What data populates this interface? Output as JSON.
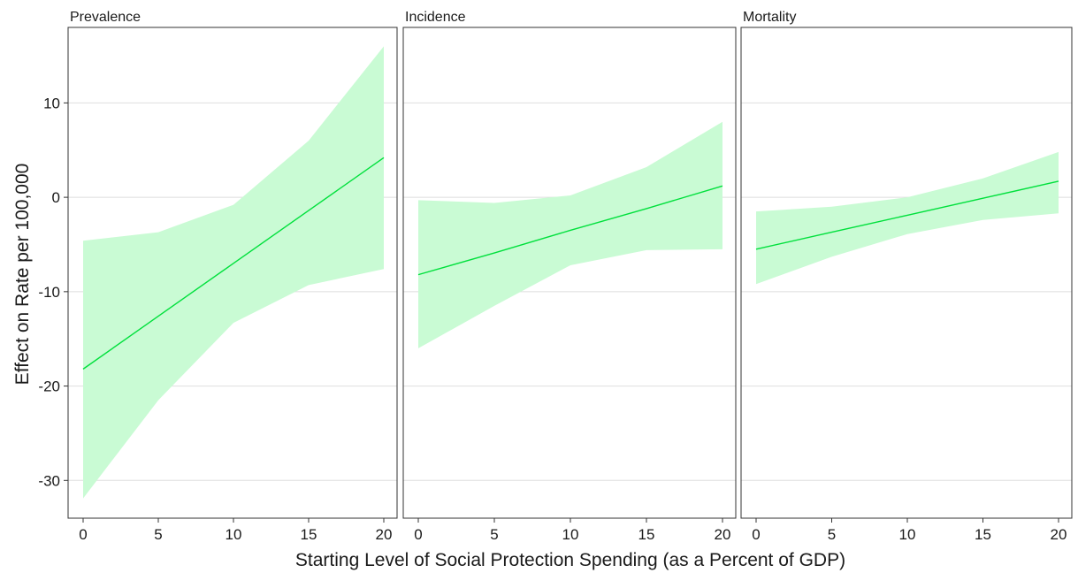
{
  "chart_data": {
    "type": "line",
    "xlabel": "Starting Level of Social Protection Spending (as a Percent of GDP)",
    "ylabel": "Effect on Rate per 100,000",
    "xlim": [
      0,
      20
    ],
    "ylim": [
      -34,
      18
    ],
    "x_ticks": [
      0,
      5,
      10,
      15,
      20
    ],
    "y_ticks": [
      -30,
      -20,
      -10,
      0,
      10
    ],
    "grid": "horizontal",
    "colors": {
      "line": "#00e03c",
      "band": "#c9fbd4"
    },
    "panels": [
      {
        "title": "Prevalence",
        "x": [
          0,
          5,
          10,
          15,
          20
        ],
        "estimate": [
          -18.2,
          -12.6,
          -7.0,
          -1.4,
          4.2
        ],
        "upper": [
          -4.6,
          -3.7,
          -0.8,
          6.0,
          16.0
        ],
        "lower": [
          -31.9,
          -21.5,
          -13.3,
          -9.3,
          -7.6
        ]
      },
      {
        "title": "Incidence",
        "x": [
          0,
          5,
          10,
          15,
          20
        ],
        "estimate": [
          -8.2,
          -5.9,
          -3.5,
          -1.2,
          1.2
        ],
        "upper": [
          -0.3,
          -0.6,
          0.2,
          3.2,
          8.0
        ],
        "lower": [
          -16.0,
          -11.5,
          -7.2,
          -5.6,
          -5.5
        ]
      },
      {
        "title": "Mortality",
        "x": [
          0,
          5,
          10,
          15,
          20
        ],
        "estimate": [
          -5.5,
          -3.7,
          -1.9,
          -0.1,
          1.7
        ],
        "upper": [
          -1.5,
          -1.0,
          0.0,
          2.0,
          4.8
        ],
        "lower": [
          -9.2,
          -6.3,
          -3.9,
          -2.4,
          -1.7
        ]
      }
    ]
  }
}
